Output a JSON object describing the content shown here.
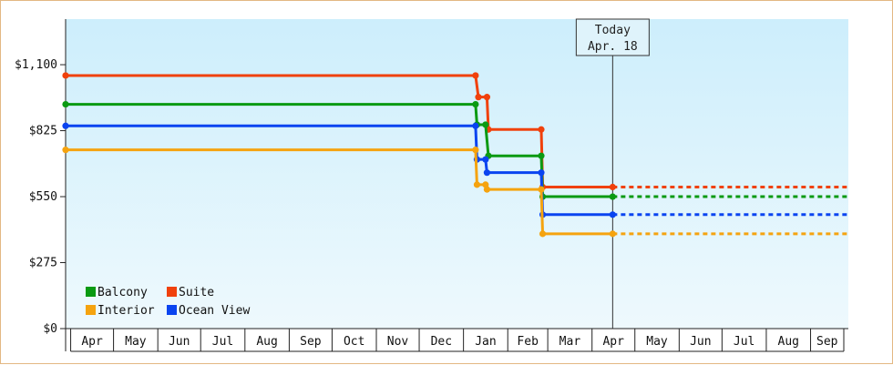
{
  "chart_data": {
    "type": "line",
    "step": true,
    "x_axis_type": "date",
    "y_tick_labels": [
      "$0",
      "$275",
      "$550",
      "$825",
      "$1,100"
    ],
    "y_ticks": [
      0,
      275,
      550,
      825,
      1100
    ],
    "ylim": [
      0,
      1290
    ],
    "xlim": [
      "2022-03-31",
      "2023-09-30"
    ],
    "month_labels": [
      "Apr",
      "May",
      "Jun",
      "Jul",
      "Aug",
      "Sep",
      "Oct",
      "Nov",
      "Dec",
      "Jan",
      "Feb",
      "Mar",
      "Apr",
      "May",
      "Jun",
      "Jul",
      "Aug",
      "Sep"
    ],
    "month_dates": [
      "2022-04-01",
      "2022-05-01",
      "2022-06-01",
      "2022-07-01",
      "2022-08-01",
      "2022-09-01",
      "2022-10-01",
      "2022-11-01",
      "2022-12-01",
      "2023-01-01",
      "2023-02-01",
      "2023-03-01",
      "2023-04-01",
      "2023-05-01",
      "2023-06-01",
      "2023-07-01",
      "2023-08-01",
      "2023-09-01"
    ],
    "today_label_line1": "Today",
    "today_label_line2": "Apr. 18",
    "today_date": "2023-04-18",
    "background_gradient": [
      "#cdeefc",
      "#eef9fd"
    ],
    "legend": [
      {
        "name": "Balcony",
        "color": "#0a9a12"
      },
      {
        "name": "Suite",
        "color": "#f0410c"
      },
      {
        "name": "Interior",
        "color": "#f5a30f"
      },
      {
        "name": "Ocean View",
        "color": "#0a44f0"
      }
    ],
    "series": [
      {
        "name": "Suite",
        "color": "#f0410c",
        "points": [
          {
            "x": "2022-03-31",
            "y": 1055
          },
          {
            "x": "2023-01-12",
            "y": 1055
          },
          {
            "x": "2023-01-14",
            "y": 965
          },
          {
            "x": "2023-01-20",
            "y": 965
          },
          {
            "x": "2023-01-21",
            "y": 830
          },
          {
            "x": "2023-02-27",
            "y": 830
          },
          {
            "x": "2023-02-28",
            "y": 590
          },
          {
            "x": "2023-04-18",
            "y": 590
          }
        ],
        "projection": {
          "from": "2023-04-18",
          "to": "2023-09-30",
          "y": 590
        }
      },
      {
        "name": "Balcony",
        "color": "#0a9a12",
        "points": [
          {
            "x": "2022-03-31",
            "y": 935
          },
          {
            "x": "2023-01-12",
            "y": 935
          },
          {
            "x": "2023-01-13",
            "y": 850
          },
          {
            "x": "2023-01-19",
            "y": 850
          },
          {
            "x": "2023-01-21",
            "y": 720
          },
          {
            "x": "2023-02-27",
            "y": 720
          },
          {
            "x": "2023-02-28",
            "y": 550
          },
          {
            "x": "2023-04-18",
            "y": 550
          }
        ],
        "projection": {
          "from": "2023-04-18",
          "to": "2023-09-30",
          "y": 550
        }
      },
      {
        "name": "Ocean View",
        "color": "#0a44f0",
        "points": [
          {
            "x": "2022-03-31",
            "y": 845
          },
          {
            "x": "2023-01-12",
            "y": 845
          },
          {
            "x": "2023-01-13",
            "y": 705
          },
          {
            "x": "2023-01-19",
            "y": 705
          },
          {
            "x": "2023-01-20",
            "y": 650
          },
          {
            "x": "2023-02-27",
            "y": 650
          },
          {
            "x": "2023-02-28",
            "y": 475
          },
          {
            "x": "2023-04-18",
            "y": 475
          }
        ],
        "projection": {
          "from": "2023-04-18",
          "to": "2023-09-30",
          "y": 475
        }
      },
      {
        "name": "Interior",
        "color": "#f5a30f",
        "points": [
          {
            "x": "2022-03-31",
            "y": 745
          },
          {
            "x": "2023-01-12",
            "y": 745
          },
          {
            "x": "2023-01-13",
            "y": 600
          },
          {
            "x": "2023-01-19",
            "y": 600
          },
          {
            "x": "2023-01-20",
            "y": 580
          },
          {
            "x": "2023-02-27",
            "y": 580
          },
          {
            "x": "2023-02-28",
            "y": 395
          },
          {
            "x": "2023-04-18",
            "y": 395
          }
        ],
        "projection": {
          "from": "2023-04-18",
          "to": "2023-09-30",
          "y": 395
        }
      }
    ]
  }
}
